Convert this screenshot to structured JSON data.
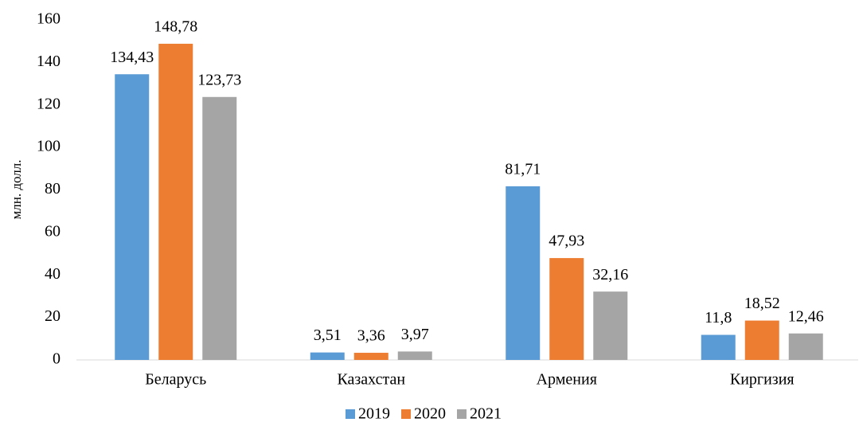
{
  "chart_data": {
    "type": "bar",
    "ylabel": "млн. долл.",
    "categories": [
      "Беларусь",
      "Казахстан",
      "Армения",
      "Киргизия"
    ],
    "series": [
      {
        "name": "2019",
        "color": "#5b9bd5",
        "values": [
          134.43,
          3.51,
          81.71,
          11.8
        ],
        "value_labels": [
          "134,43",
          "3,51",
          "81,71",
          "11,8"
        ]
      },
      {
        "name": "2020",
        "color": "#ed7d31",
        "values": [
          148.78,
          3.36,
          47.93,
          18.52
        ],
        "value_labels": [
          "148,78",
          "3,36",
          "47,93",
          "18,52"
        ]
      },
      {
        "name": "2021",
        "color": "#a5a5a5",
        "values": [
          123.73,
          3.97,
          32.16,
          12.46
        ],
        "value_labels": [
          "123,73",
          "3,97",
          "32,16",
          "12,46"
        ]
      }
    ],
    "ylim": [
      0,
      160
    ],
    "yticks": [
      0,
      20,
      40,
      60,
      80,
      100,
      120,
      140,
      160
    ],
    "grid": false,
    "legend": "bottom"
  }
}
